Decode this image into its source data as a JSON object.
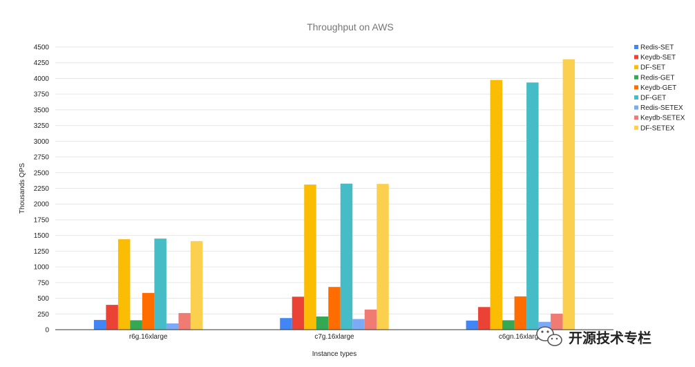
{
  "chart_data": {
    "type": "bar",
    "title": "Throughput on AWS",
    "xlabel": "Instance types",
    "ylabel": "Thousands QPS",
    "ylim": [
      0,
      4500
    ],
    "yticks": [
      0,
      250,
      500,
      750,
      1000,
      1250,
      1500,
      1750,
      2000,
      2250,
      2500,
      2750,
      3000,
      3250,
      3500,
      3750,
      4000,
      4250,
      4500
    ],
    "grid": true,
    "legend_position": "right",
    "categories": [
      "r6g.16xlarge",
      "c7g.16xlarge",
      "c6gn.16xlarge"
    ],
    "series": [
      {
        "name": "Redis-SET",
        "color": "#4285f4",
        "values": [
          155,
          185,
          145
        ]
      },
      {
        "name": "Keydb-SET",
        "color": "#ea4335",
        "values": [
          395,
          525,
          360
        ]
      },
      {
        "name": "DF-SET",
        "color": "#fbbc04",
        "values": [
          1440,
          2310,
          3975
        ]
      },
      {
        "name": "Redis-GET",
        "color": "#34a853",
        "values": [
          150,
          210,
          150
        ]
      },
      {
        "name": "Keydb-GET",
        "color": "#ff6d01",
        "values": [
          585,
          680,
          530
        ]
      },
      {
        "name": "DF-GET",
        "color": "#46bdc6",
        "values": [
          1450,
          2325,
          3935
        ]
      },
      {
        "name": "Redis-SETEX",
        "color": "#7baaf7",
        "values": [
          100,
          170,
          125
        ]
      },
      {
        "name": "Keydb-SETEX",
        "color": "#f07b72",
        "values": [
          265,
          320,
          255
        ]
      },
      {
        "name": "DF-SETEX",
        "color": "#fcd04f",
        "values": [
          1410,
          2320,
          4305
        ]
      }
    ]
  },
  "watermark": {
    "text": "开源技术专栏",
    "icon": "wechat-icon"
  }
}
